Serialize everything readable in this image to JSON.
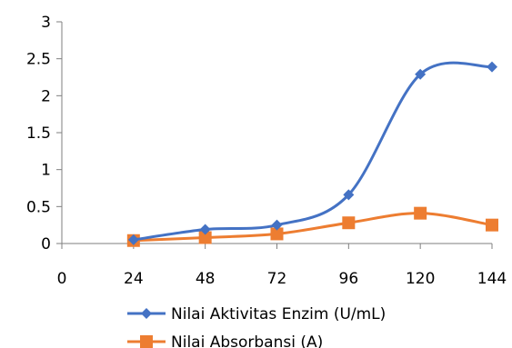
{
  "chart_data": {
    "type": "line",
    "title": "",
    "xlabel": "",
    "ylabel": "",
    "x_ticks": [
      "0",
      "24",
      "48",
      "72",
      "96",
      "120",
      "144"
    ],
    "y_ticks": [
      "0",
      "0.5",
      "1",
      "1.5",
      "2",
      "2.5",
      "3"
    ],
    "xlim": [
      0,
      144
    ],
    "ylim": [
      0,
      3
    ],
    "x": [
      24,
      48,
      72,
      96,
      120,
      144
    ],
    "series": [
      {
        "name": "Nilai Aktivitas Enzim (U/mL)",
        "values": [
          0.05,
          0.19,
          0.25,
          0.66,
          2.29,
          2.39
        ],
        "color": "#4472C4",
        "marker": "diamond",
        "smooth": true
      },
      {
        "name": "Nilai Absorbansi (A)",
        "values": [
          0.04,
          0.08,
          0.13,
          0.28,
          0.41,
          0.25
        ],
        "color": "#ED7D31",
        "marker": "square",
        "smooth": true
      }
    ],
    "grid": false,
    "legend_position": "bottom"
  }
}
